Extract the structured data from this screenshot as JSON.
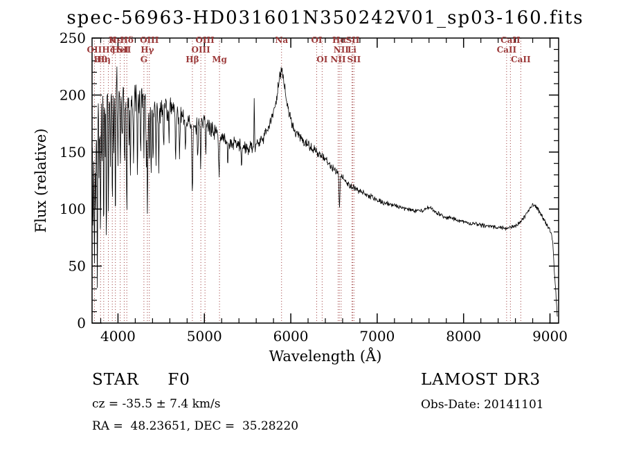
{
  "title": "spec-56963-HD031601N350242V01_sp03-160.fits",
  "colors": {
    "background": "#ffffff",
    "axis": "#000000",
    "spectrum": "#000000",
    "line_marker": "#9c3a3a"
  },
  "annotations": {
    "class_and_type": "STAR     F0",
    "survey": "LAMOST DR3",
    "cz": "cz = -35.5 ± 7.4 km/s",
    "obs_date": "Obs-Date: 20141101",
    "radec": "RA =  48.23651, DEC =  35.28220"
  },
  "chart_data": {
    "type": "line",
    "title": "spec-56963-HD031601N350242V01_sp03-160.fits",
    "xlabel": "Wavelength (Å)",
    "ylabel": "Flux (relative)",
    "xlim": [
      3700,
      9100
    ],
    "ylim": [
      0,
      250
    ],
    "x_major_ticks": [
      4000,
      5000,
      6000,
      7000,
      8000,
      9000
    ],
    "x_minor_step": 200,
    "y_major_ticks": [
      0,
      50,
      100,
      150,
      200,
      250
    ],
    "y_minor_step": 10,
    "sample_step": 4,
    "noise_seed": 20141101,
    "envelope": [
      [
        3700,
        155
      ],
      [
        3720,
        185
      ],
      [
        3760,
        195
      ],
      [
        3800,
        200
      ],
      [
        3850,
        205
      ],
      [
        3900,
        208
      ],
      [
        3950,
        207
      ],
      [
        4000,
        205
      ],
      [
        4050,
        202
      ],
      [
        4100,
        200
      ],
      [
        4150,
        198
      ],
      [
        4200,
        196
      ],
      [
        4250,
        199
      ],
      [
        4300,
        200
      ],
      [
        4350,
        193
      ],
      [
        4400,
        189
      ],
      [
        4450,
        186
      ],
      [
        4500,
        186
      ],
      [
        4550,
        188
      ],
      [
        4600,
        189
      ],
      [
        4650,
        186
      ],
      [
        4700,
        182
      ],
      [
        4750,
        179
      ],
      [
        4800,
        178
      ],
      [
        4850,
        176
      ],
      [
        4900,
        173
      ],
      [
        4950,
        176
      ],
      [
        5000,
        178
      ],
      [
        5050,
        172
      ],
      [
        5100,
        168
      ],
      [
        5150,
        166
      ],
      [
        5200,
        164
      ],
      [
        5250,
        161
      ],
      [
        5300,
        158
      ],
      [
        5350,
        157
      ],
      [
        5400,
        156
      ],
      [
        5450,
        154
      ],
      [
        5500,
        153
      ],
      [
        5550,
        154
      ],
      [
        5600,
        156
      ],
      [
        5650,
        160
      ],
      [
        5700,
        164
      ],
      [
        5750,
        172
      ],
      [
        5800,
        184
      ],
      [
        5840,
        200
      ],
      [
        5870,
        215
      ],
      [
        5893,
        221
      ],
      [
        5920,
        212
      ],
      [
        5950,
        196
      ],
      [
        5980,
        183
      ],
      [
        6010,
        174
      ],
      [
        6050,
        168
      ],
      [
        6100,
        163
      ],
      [
        6150,
        159
      ],
      [
        6200,
        156
      ],
      [
        6250,
        153
      ],
      [
        6300,
        150
      ],
      [
        6350,
        147
      ],
      [
        6400,
        143
      ],
      [
        6450,
        139
      ],
      [
        6500,
        135
      ],
      [
        6550,
        131
      ],
      [
        6600,
        127
      ],
      [
        6650,
        123
      ],
      [
        6700,
        120
      ],
      [
        6750,
        118
      ],
      [
        6800,
        116
      ],
      [
        6850,
        114
      ],
      [
        6900,
        112
      ],
      [
        6950,
        110
      ],
      [
        7000,
        108
      ],
      [
        7100,
        105
      ],
      [
        7200,
        103
      ],
      [
        7300,
        101
      ],
      [
        7400,
        99
      ],
      [
        7500,
        98
      ],
      [
        7550,
        100
      ],
      [
        7600,
        101
      ],
      [
        7650,
        99
      ],
      [
        7700,
        96
      ],
      [
        7800,
        93
      ],
      [
        7900,
        91
      ],
      [
        8000,
        89
      ],
      [
        8100,
        87
      ],
      [
        8200,
        86
      ],
      [
        8300,
        85
      ],
      [
        8400,
        84
      ],
      [
        8500,
        83
      ],
      [
        8550,
        84
      ],
      [
        8600,
        85
      ],
      [
        8650,
        88
      ],
      [
        8700,
        93
      ],
      [
        8750,
        99
      ],
      [
        8800,
        104
      ],
      [
        8850,
        101
      ],
      [
        8900,
        95
      ],
      [
        8950,
        88
      ],
      [
        9000,
        82
      ],
      [
        9030,
        72
      ],
      [
        9060,
        35
      ],
      [
        9085,
        6
      ]
    ],
    "noise_amp": [
      [
        3700,
        32
      ],
      [
        3800,
        30
      ],
      [
        3900,
        27
      ],
      [
        4000,
        23
      ],
      [
        4100,
        20
      ],
      [
        4200,
        18
      ],
      [
        4300,
        16
      ],
      [
        4400,
        14
      ],
      [
        4500,
        12
      ],
      [
        4700,
        10
      ],
      [
        4900,
        9
      ],
      [
        5100,
        8
      ],
      [
        5300,
        7
      ],
      [
        5500,
        7
      ],
      [
        5700,
        6
      ],
      [
        5900,
        6
      ],
      [
        6100,
        5
      ],
      [
        6300,
        4.5
      ],
      [
        6500,
        4
      ],
      [
        6700,
        3.5
      ],
      [
        7000,
        3
      ],
      [
        7300,
        2.7
      ],
      [
        7600,
        2.5
      ],
      [
        8000,
        2.3
      ],
      [
        8400,
        2.2
      ],
      [
        8800,
        2.4
      ],
      [
        9100,
        2.6
      ]
    ],
    "absorption_dips": [
      [
        3712,
        95,
        4
      ],
      [
        3727,
        140,
        4
      ],
      [
        3742,
        80,
        4
      ],
      [
        3760,
        160,
        4
      ],
      [
        3782,
        70,
        4
      ],
      [
        3798,
        125,
        4
      ],
      [
        3815,
        75,
        4
      ],
      [
        3835,
        115,
        4
      ],
      [
        3852,
        60,
        4
      ],
      [
        3865,
        145,
        4
      ],
      [
        3889,
        105,
        4
      ],
      [
        3912,
        65,
        4
      ],
      [
        3934,
        115,
        4
      ],
      [
        3952,
        55,
        4
      ],
      [
        3970,
        125,
        4
      ],
      [
        4000,
        55,
        4
      ],
      [
        4026,
        75,
        4
      ],
      [
        4048,
        45,
        4
      ],
      [
        4077,
        70,
        4
      ],
      [
        4102,
        105,
        5
      ],
      [
        4130,
        45,
        4
      ],
      [
        4144,
        58,
        4
      ],
      [
        4180,
        48,
        4
      ],
      [
        4226,
        68,
        4
      ],
      [
        4262,
        42,
        4
      ],
      [
        4300,
        55,
        4
      ],
      [
        4326,
        46,
        4
      ],
      [
        4340,
        88,
        5
      ],
      [
        4363,
        52,
        4
      ],
      [
        4383,
        62,
        4
      ],
      [
        4406,
        42,
        4
      ],
      [
        4440,
        36,
        4
      ],
      [
        4472,
        52,
        4
      ],
      [
        4530,
        36,
        4
      ],
      [
        4590,
        30,
        4
      ],
      [
        4668,
        40,
        4
      ],
      [
        4713,
        32,
        4
      ],
      [
        4780,
        28,
        4
      ],
      [
        4861,
        68,
        5
      ],
      [
        4922,
        32,
        4
      ],
      [
        4957,
        34,
        4
      ],
      [
        5015,
        30,
        4
      ],
      [
        5170,
        36,
        5
      ],
      [
        5270,
        26,
        4
      ],
      [
        5430,
        18,
        4
      ],
      [
        6563,
        30,
        5
      ]
    ],
    "emission_spikes": [
      [
        5577,
        44,
        3
      ]
    ],
    "spectral_lines": [
      {
        "label": "OII",
        "wavelength": 3727,
        "row": 1
      },
      {
        "label": "Hθ",
        "wavelength": 3798,
        "row": 2
      },
      {
        "label": "Hη",
        "wavelength": 3835,
        "row": 2
      },
      {
        "label": "Hζ",
        "wavelength": 3889,
        "row": 1
      },
      {
        "label": "K",
        "wavelength": 3934,
        "row": 0
      },
      {
        "label": "Hε",
        "wavelength": 3970,
        "row": 0
      },
      {
        "label": "HeI",
        "wavelength": 4026,
        "row": 1
      },
      {
        "label": "SII",
        "wavelength": 4072,
        "row": 1
      },
      {
        "label": "Hδ",
        "wavelength": 4102,
        "row": 0
      },
      {
        "label": "G",
        "wavelength": 4300,
        "row": 2
      },
      {
        "label": "Hγ",
        "wavelength": 4340,
        "row": 1
      },
      {
        "label": "OIII",
        "wavelength": 4363,
        "row": 0
      },
      {
        "label": "Hβ",
        "wavelength": 4861,
        "row": 2
      },
      {
        "label": "OIII",
        "wavelength": 4959,
        "row": 1
      },
      {
        "label": "OIII",
        "wavelength": 5007,
        "row": 0
      },
      {
        "label": "Mg",
        "wavelength": 5175,
        "row": 2
      },
      {
        "label": "Na",
        "wavelength": 5893,
        "row": 0
      },
      {
        "label": "OI",
        "wavelength": 6300,
        "row": 0
      },
      {
        "label": "OI",
        "wavelength": 6363,
        "row": 2
      },
      {
        "label": "NII",
        "wavelength": 6548,
        "row": 2
      },
      {
        "label": "Hα",
        "wavelength": 6563,
        "row": 0
      },
      {
        "label": "NII",
        "wavelength": 6583,
        "row": 1
      },
      {
        "label": "Li",
        "wavelength": 6708,
        "row": 1
      },
      {
        "label": "SII",
        "wavelength": 6716,
        "row": 0
      },
      {
        "label": "SII",
        "wavelength": 6731,
        "row": 2
      },
      {
        "label": "CaII",
        "wavelength": 8498,
        "row": 1
      },
      {
        "label": "CaII",
        "wavelength": 8542,
        "row": 0
      },
      {
        "label": "CaII",
        "wavelength": 8662,
        "row": 2
      }
    ]
  }
}
